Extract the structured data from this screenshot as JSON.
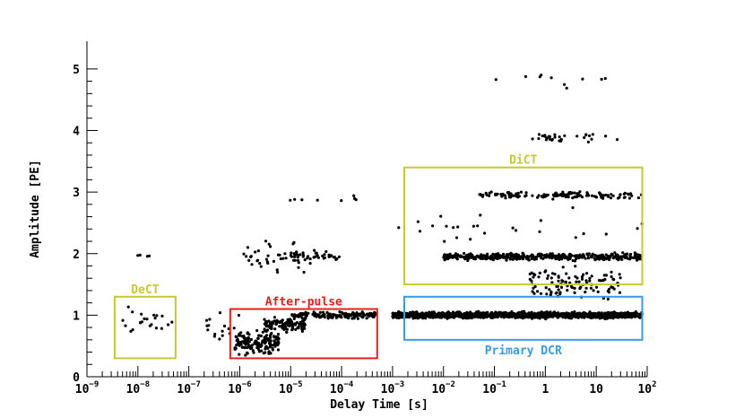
{
  "chart_data": {
    "type": "scatter",
    "xlabel": "Delay Time [s]",
    "ylabel": "Amplitude [PE]",
    "xscale": "log",
    "xlim": [
      1e-09,
      100
    ],
    "ylim": [
      0,
      5.45
    ],
    "x_ticks": [
      {
        "value": 1e-09,
        "base": "10",
        "exp": "−9"
      },
      {
        "value": 1e-08,
        "base": "10",
        "exp": "−8"
      },
      {
        "value": 1e-07,
        "base": "10",
        "exp": "−7"
      },
      {
        "value": 1e-06,
        "base": "10",
        "exp": "−6"
      },
      {
        "value": 1e-05,
        "base": "10",
        "exp": "−5"
      },
      {
        "value": 0.0001,
        "base": "10",
        "exp": "−4"
      },
      {
        "value": 0.001,
        "base": "10",
        "exp": "−3"
      },
      {
        "value": 0.01,
        "base": "10",
        "exp": "−2"
      },
      {
        "value": 0.1,
        "base": "10",
        "exp": "−1"
      },
      {
        "value": 1,
        "base": "1",
        "exp": ""
      },
      {
        "value": 10,
        "base": "10",
        "exp": ""
      },
      {
        "value": 100,
        "base": "10",
        "exp": "2"
      }
    ],
    "y_ticks": [
      "0",
      "1",
      "2",
      "3",
      "4",
      "5"
    ],
    "regions": [
      {
        "label": "DeCT",
        "color": "#c8c832",
        "xmin": 3.5e-09,
        "xmax": 5.5e-08,
        "ymin": 0.3,
        "ymax": 1.3
      },
      {
        "label": "After-pulse",
        "color": "#e8201a",
        "xmin": 6.5e-07,
        "xmax": 0.0005,
        "ymin": 0.3,
        "ymax": 1.1
      },
      {
        "label": "DiCT",
        "color": "#c8c832",
        "xmin": 0.0017,
        "xmax": 80,
        "ymin": 1.5,
        "ymax": 3.4
      },
      {
        "label": "Primary DCR",
        "color": "#3a9be0",
        "xmin": 0.0017,
        "xmax": 80,
        "ymin": 0.6,
        "ymax": 1.3
      }
    ],
    "clusters": [
      {
        "x_range": [
          3.8e-09,
          5e-08
        ],
        "y_center": 0.9,
        "y_spread": 0.35,
        "count": 22
      },
      {
        "x_range": [
          8e-09,
          2.5e-08
        ],
        "y_center": 1.95,
        "y_spread": 0.05,
        "count": 4
      },
      {
        "x_range": [
          8e-07,
          6e-06
        ],
        "y_center": 0.55,
        "y_spread": 0.25,
        "count": 160
      },
      {
        "x_range": [
          3e-06,
          2e-05
        ],
        "y_center": 0.85,
        "y_spread": 0.15,
        "count": 120
      },
      {
        "x_range": [
          1e-05,
          0.0005
        ],
        "y_center": 1.0,
        "y_spread": 0.07,
        "count": 160
      },
      {
        "x_range": [
          2e-07,
          1e-06
        ],
        "y_center": 0.8,
        "y_spread": 0.35,
        "count": 18
      },
      {
        "x_range": [
          1e-06,
          2.5e-05
        ],
        "y_center": 1.95,
        "y_spread": 0.35,
        "count": 45
      },
      {
        "x_range": [
          1e-05,
          0.0001
        ],
        "y_center": 1.95,
        "y_spread": 0.12,
        "count": 35
      },
      {
        "x_range": [
          8e-06,
          0.0002
        ],
        "y_center": 2.9,
        "y_spread": 0.08,
        "count": 8
      },
      {
        "x_range": [
          0.001,
          80
        ],
        "y_center": 1.0,
        "y_spread": 0.07,
        "count": 1400
      },
      {
        "x_range": [
          0.01,
          80
        ],
        "y_center": 1.95,
        "y_spread": 0.08,
        "count": 420
      },
      {
        "x_range": [
          0.05,
          80
        ],
        "y_center": 2.95,
        "y_spread": 0.08,
        "count": 140
      },
      {
        "x_range": [
          0.5,
          30
        ],
        "y_center": 1.5,
        "y_spread": 0.35,
        "count": 110
      },
      {
        "x_range": [
          0.5,
          30
        ],
        "y_center": 3.9,
        "y_spread": 0.12,
        "count": 30
      },
      {
        "x_range": [
          0.1,
          40
        ],
        "y_center": 4.8,
        "y_spread": 0.2,
        "count": 10
      },
      {
        "x_range": [
          0.001,
          80
        ],
        "y_center": 2.4,
        "y_spread": 0.4,
        "count": 25
      }
    ],
    "grid": false,
    "legend": "none"
  }
}
